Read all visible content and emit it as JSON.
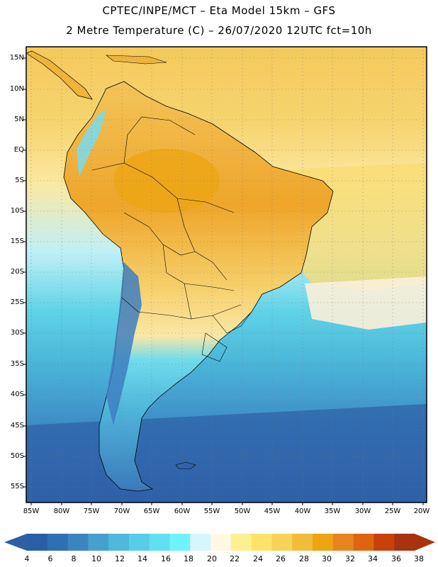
{
  "header": {
    "title": "CPTEC/INPE/MCT –  Eta Model 15km – GFS",
    "subtitle": "2 Metre Temperature (C) – 26/07/2020 12UTC fct=10h"
  },
  "map": {
    "latitude_labels": [
      "15N",
      "10N",
      "5N",
      "EQ",
      "5S",
      "10S",
      "15S",
      "20S",
      "25S",
      "30S",
      "35S",
      "40S",
      "45S",
      "50S",
      "55S"
    ],
    "longitude_labels": [
      "85W",
      "80W",
      "75W",
      "70W",
      "65W",
      "60W",
      "55W",
      "50W",
      "45W",
      "40W",
      "35W",
      "30W",
      "25W",
      "20W"
    ]
  },
  "colorbar": {
    "ticks": [
      "4",
      "6",
      "8",
      "10",
      "12",
      "14",
      "16",
      "18",
      "20",
      "22",
      "24",
      "26",
      "28",
      "30",
      "32",
      "34",
      "36",
      "38"
    ],
    "colors": [
      "#2a5fa8",
      "#2f6fb3",
      "#3a85c0",
      "#44a1cf",
      "#4fb8dc",
      "#58cde8",
      "#60e0f0",
      "#6ff3fb",
      "#d6f6fb",
      "#fff8e4",
      "#fff08f",
      "#fde36a",
      "#f8d257",
      "#f1bc3a",
      "#eda514",
      "#e8841e",
      "#df6412",
      "#c9410a",
      "#a8330e"
    ],
    "under_color": "#2e5fa5",
    "over_color": "#a8330e"
  }
}
